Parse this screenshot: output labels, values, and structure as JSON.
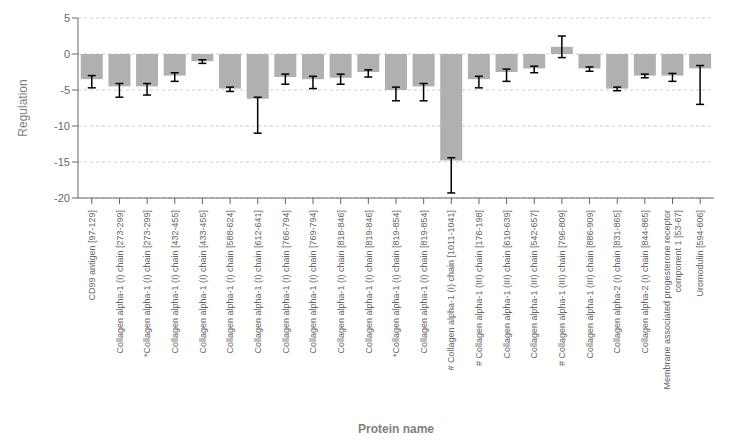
{
  "chart_data": {
    "type": "bar",
    "categories": [
      "CD99 antigen [97-129]",
      "Collagen alpha-1 (I) chain [273-299]",
      "*Collagen alpha-1 (I) chain [273-299]",
      "Collagen alpha-1 (I) chain [432-455]",
      "Collagen alpha-1 (I) chain [433-455]",
      "Collagen alpha-1 (I) chain [588-624]",
      "Collagen alpha-1 (I) chain [612-641]",
      "Collagen alpha-1 (I) chain [766-794]",
      "Collagen alpha-1 (I) chain [769-794]",
      "Collagen alpha-1 (I) chain [818-846]",
      "Collagen alpha-1 (I) chain [819-846]",
      "*Collagen alpha-1 (I) chain [819-854]",
      "Collagen alpha-1 (I) chain [819-854]",
      "# Collagen alpha-1 (I) chain [1011-1041]",
      "# Collagen alpha-1 (III) chain [176-198]",
      "Collagen alpha-1 (III) chain [610-639]",
      "Collagen alpha-1 (III) chain [542-657]",
      "# Collagen alpha-1 (III) chain [796-809]",
      "Collagen alpha-1 (III) chain [886-909]",
      "Collagen alpha-2 (I) chain [831-865]",
      "Collagen alpha-2 (I) chain [844-865]",
      "Membrane associated progesterone receptor\ncomponent 1 [53-67]",
      "Uromodulin [594-606]"
    ],
    "values": [
      -3.5,
      -4.5,
      -4.5,
      -3.0,
      -1.0,
      -4.8,
      -6.2,
      -3.2,
      -3.5,
      -3.3,
      -2.5,
      -5.0,
      -4.5,
      -14.8,
      -3.5,
      -2.5,
      -2.0,
      1.0,
      -2.0,
      -4.8,
      -3.0,
      -3.0,
      -2.0
    ],
    "errors_neg": [
      1.2,
      1.5,
      1.2,
      0.8,
      0.3,
      0.4,
      4.8,
      1.0,
      1.3,
      0.9,
      0.7,
      1.5,
      2.0,
      4.5,
      1.2,
      1.3,
      0.6,
      1.5,
      0.4,
      0.3,
      0.3,
      0.8,
      5.0
    ],
    "errors_pos": [
      0.5,
      0.4,
      0.4,
      0.4,
      0.2,
      0.2,
      0.2,
      0.4,
      0.4,
      0.5,
      0.3,
      0.4,
      0.4,
      0.4,
      0.4,
      0.4,
      0.3,
      1.5,
      0.2,
      0.2,
      0.2,
      0.3,
      0.4
    ],
    "color": "#b0b0b0",
    "xlabel": "Protein name",
    "ylabel": "Regulation",
    "ylim": [
      -20,
      5
    ],
    "yticks": [
      5,
      0,
      -5,
      -10,
      -15,
      -20
    ],
    "grid": true
  }
}
